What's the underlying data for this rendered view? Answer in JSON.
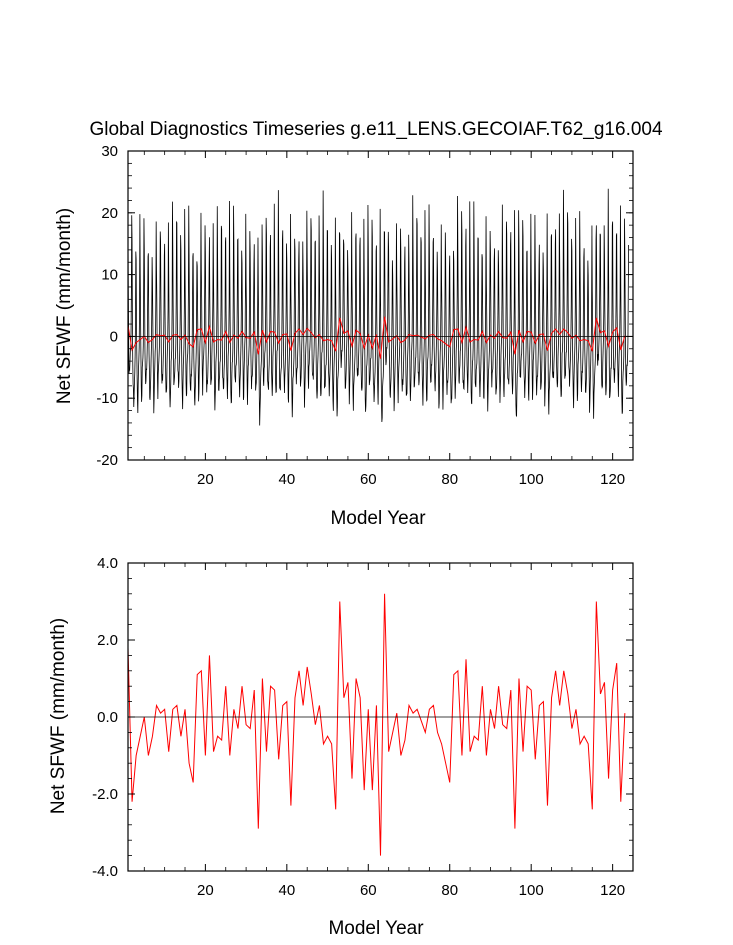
{
  "chart_data": [
    {
      "type": "line",
      "title": "Global Diagnostics Timeseries g.e11_LENS.GECOIAF.T62_g16.004",
      "xlabel": "Model Year",
      "ylabel": "Net SFWF (mm/month)",
      "xlim": [
        1,
        125
      ],
      "ylim": [
        -20,
        30
      ],
      "x_ticks": [
        20,
        40,
        60,
        80,
        100,
        120
      ],
      "y_ticks": [
        -20,
        -10,
        0,
        10,
        20,
        30
      ],
      "x_tick_labels": [
        "20",
        "40",
        "60",
        "80",
        "100",
        "120"
      ],
      "y_tick_labels": [
        "-20",
        "-10",
        "0",
        "10",
        "20",
        "30"
      ],
      "grid": false,
      "reference_line": 0,
      "series": [
        {
          "color": "#000000",
          "samples_per_year": 12,
          "monthly_cycle": [
            13.5,
            4.5,
            -2.0,
            -6.5,
            -9.0,
            -8.5,
            -6.5,
            -4.5,
            -3.0,
            -1.0,
            5.5,
            17.5
          ]
        },
        {
          "color": "#ff0000",
          "note_ref": "annual",
          "values_ref": "annual_values"
        }
      ]
    },
    {
      "type": "line",
      "title": "",
      "xlabel": "Model Year",
      "ylabel": "Net SFWF (mm/month)",
      "xlim": [
        1,
        125
      ],
      "ylim": [
        -4,
        4
      ],
      "x_ticks": [
        20,
        40,
        60,
        80,
        100,
        120
      ],
      "y_ticks": [
        -4,
        -2,
        0,
        2,
        4
      ],
      "x_tick_labels": [
        "20",
        "40",
        "60",
        "80",
        "100",
        "120"
      ],
      "y_tick_labels": [
        "-4.0",
        "-2.0",
        "0.0",
        "2.0",
        "4.0"
      ],
      "grid": false,
      "reference_line": 0,
      "series": [
        {
          "color": "#ff0000",
          "values_ref": "annual_values"
        }
      ]
    }
  ],
  "annual_values": [
    1.8,
    -2.2,
    -1.0,
    -0.5,
    0.0,
    -1.0,
    -0.5,
    0.3,
    0.1,
    0.2,
    -0.9,
    0.2,
    0.3,
    -0.5,
    0.2,
    -1.2,
    -1.7,
    1.1,
    1.2,
    -1.0,
    1.6,
    -0.9,
    -0.5,
    -0.6,
    0.8,
    -1.0,
    0.2,
    -0.3,
    0.8,
    -0.2,
    -0.3,
    0.7,
    -2.9,
    1.0,
    -0.9,
    0.8,
    0.7,
    -1.1,
    0.3,
    0.4,
    -2.3,
    0.5,
    1.2,
    0.3,
    1.3,
    0.6,
    -0.2,
    0.3,
    -0.7,
    -0.5,
    -0.7,
    -2.4,
    3.0,
    0.5,
    0.9,
    -1.6,
    1.0,
    0.5,
    -1.9,
    0.2,
    -1.9,
    0.3,
    -3.6,
    3.2,
    -0.9,
    -0.4,
    0.1,
    -1.0,
    -0.6,
    0.3,
    0.1,
    0.2,
    -0.1,
    -0.4,
    0.2,
    0.3,
    -0.4,
    -0.7,
    -1.2,
    -1.7,
    1.1,
    1.2,
    -1.0,
    1.5,
    -0.9,
    -0.5,
    -0.6,
    0.8,
    -1.0,
    0.2,
    -0.3,
    0.8,
    -0.2,
    -0.3,
    0.7,
    -2.9,
    1.0,
    -0.9,
    0.8,
    0.7,
    -1.1,
    0.3,
    0.4,
    -2.3,
    0.5,
    1.2,
    0.3,
    1.2,
    0.6,
    -0.3,
    0.2,
    -0.7,
    -0.5,
    -0.7,
    -2.4,
    3.0,
    0.6,
    0.9,
    -1.6,
    0.7,
    1.4,
    -2.2,
    0.1
  ]
}
